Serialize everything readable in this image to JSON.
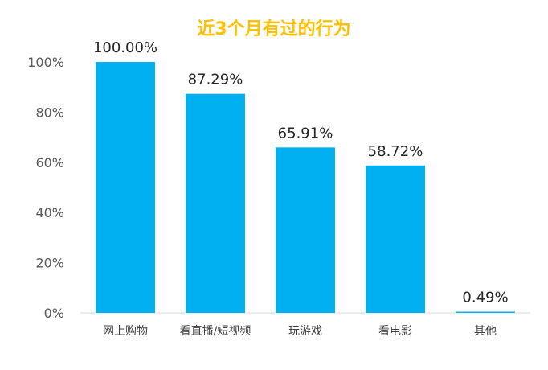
{
  "chart_data": {
    "type": "bar",
    "title": "近3个月有过的行为",
    "categories": [
      "网上购物",
      "看直播/短视频",
      "玩游戏",
      "看电影",
      "其他"
    ],
    "values": [
      100.0,
      87.29,
      65.91,
      58.72,
      0.49
    ],
    "data_labels": [
      "100.00%",
      "87.29%",
      "65.91%",
      "58.72%",
      "0.49%"
    ],
    "y_ticks": [
      "0%",
      "20%",
      "40%",
      "60%",
      "80%",
      "100%"
    ],
    "ylim": [
      0,
      100
    ],
    "grid": false,
    "legend": "none",
    "colors": {
      "bar": "#00B0F0",
      "title": "#FFC000",
      "axis": "#D9D9D9"
    }
  }
}
